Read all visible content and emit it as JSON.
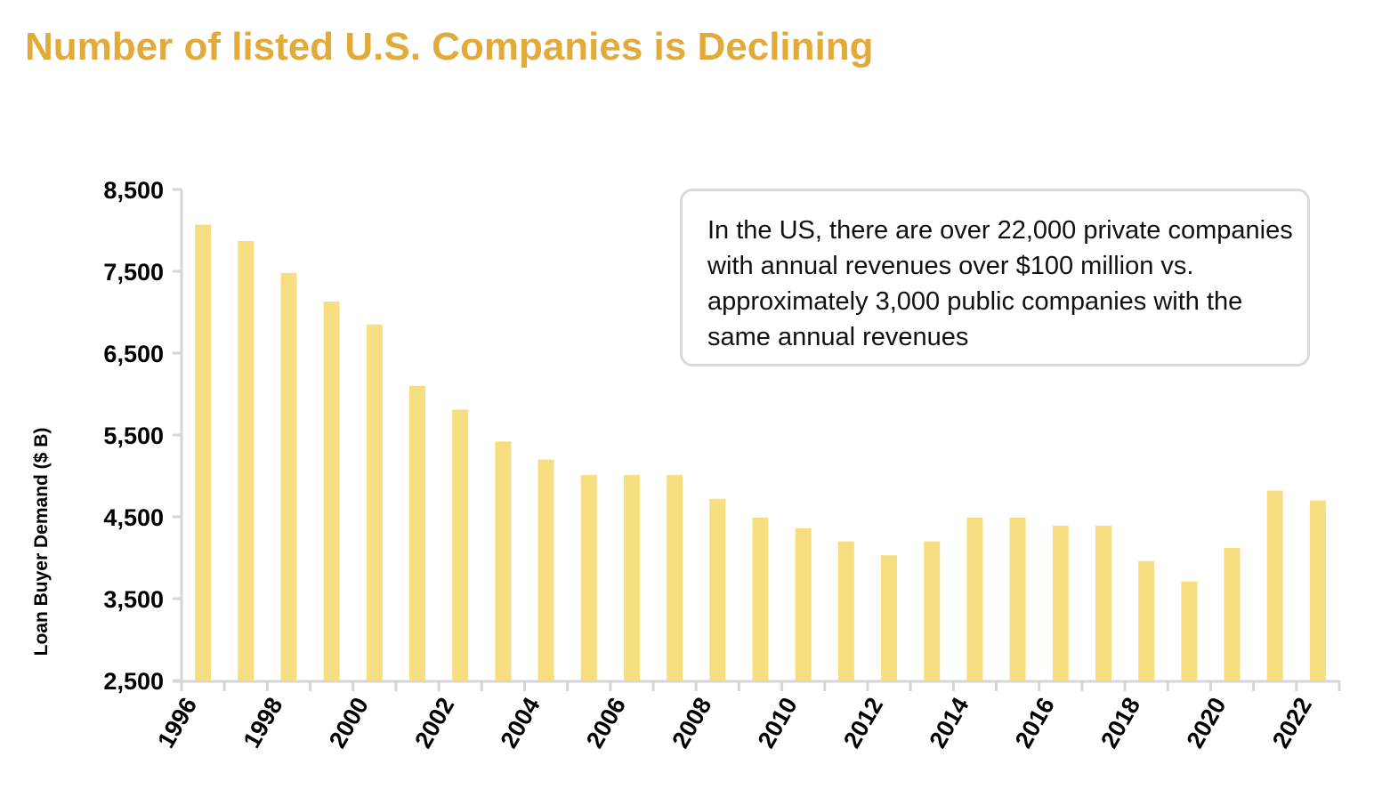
{
  "title": "Number of listed U.S. Companies is Declining",
  "annotation": "In the US, there are over 22,000 private companies with annual revenues over $100 million vs. approximately 3,000 public companies with the same annual revenues",
  "colors": {
    "title": "#e2aa38",
    "bar": "#f7de80",
    "axis": "#d6d6d6"
  },
  "chart_data": {
    "type": "bar",
    "title": "Number of listed U.S. Companies is Declining",
    "xlabel": "",
    "ylabel": "Loan Buyer Demand ($ B)",
    "ylim": [
      2500,
      8500
    ],
    "yticks": [
      "2,500",
      "3,500",
      "4,500",
      "5,500",
      "6,500",
      "7,500",
      "8,500"
    ],
    "xtick_labels": [
      "1996",
      "1998",
      "2000",
      "2002",
      "2004",
      "2006",
      "2008",
      "2010",
      "2012",
      "2014",
      "2016",
      "2018",
      "2020",
      "2022"
    ],
    "grid": false,
    "categories": [
      "1996",
      "1997",
      "1998",
      "1999",
      "2000",
      "2001",
      "2002",
      "2003",
      "2004",
      "2005",
      "2006",
      "2007",
      "2008",
      "2009",
      "2010",
      "2011",
      "2012",
      "2013",
      "2014",
      "2015",
      "2016",
      "2017",
      "2018",
      "2019",
      "2020",
      "2021",
      "2022"
    ],
    "values": [
      8070,
      7870,
      7480,
      7130,
      6850,
      6100,
      5810,
      5420,
      5200,
      5010,
      5010,
      5010,
      4720,
      4490,
      4360,
      4200,
      4030,
      4200,
      4490,
      4490,
      4390,
      4390,
      3960,
      3710,
      4120,
      4820,
      4700
    ]
  }
}
